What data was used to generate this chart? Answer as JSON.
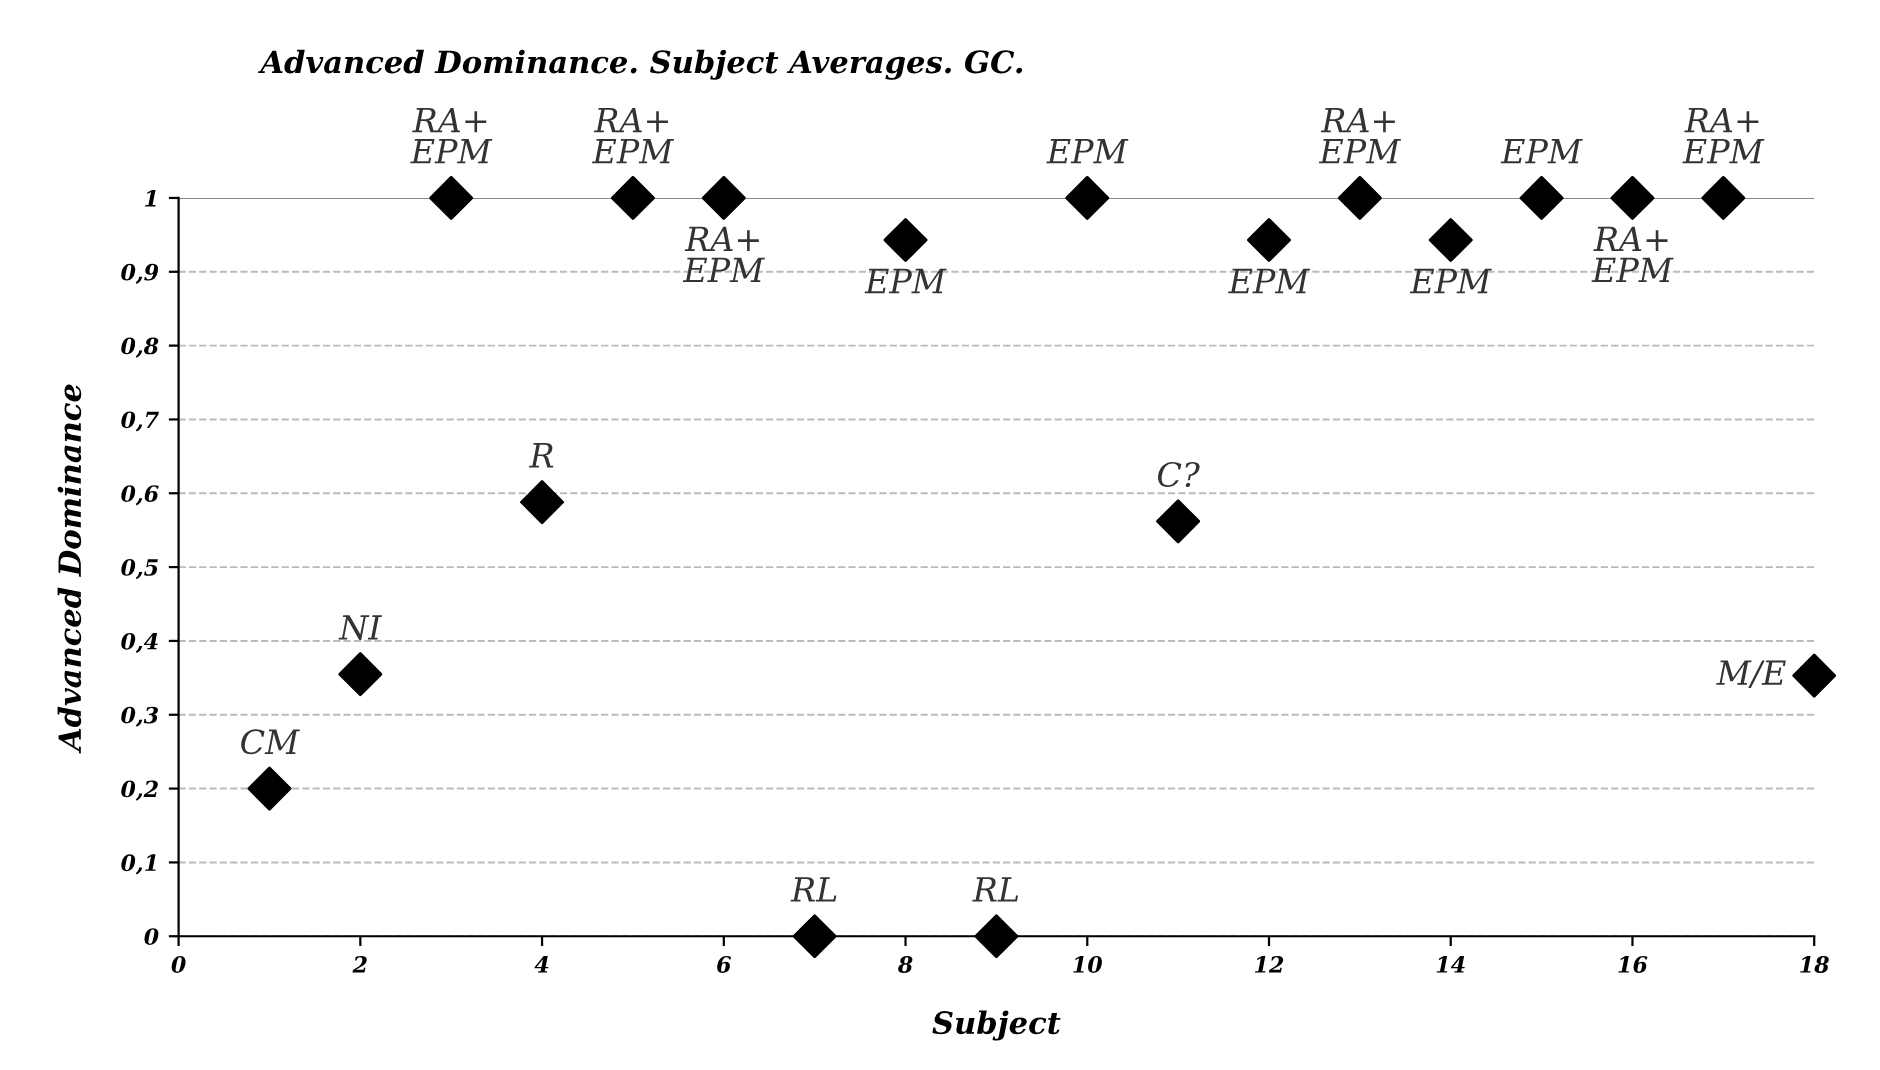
{
  "chart_data": {
    "type": "scatter",
    "title": "Advanced Dominance. Subject Averages. GC.",
    "xlabel": "Subject",
    "ylabel": "Advanced Dominance",
    "x": [
      1,
      2,
      3,
      4,
      5,
      6,
      7,
      8,
      9,
      10,
      11,
      12,
      13,
      14,
      15,
      16,
      17,
      18
    ],
    "series": [
      {
        "color": "#000000",
        "values": [
          0.2,
          0.355,
          1,
          0.588,
          1,
          1,
          0,
          0.943,
          0,
          1,
          0.562,
          0.943,
          1,
          0.943,
          1,
          1,
          1,
          0.353
        ]
      }
    ],
    "marker": "diamond",
    "grid": "y",
    "legend": false,
    "xlim": [
      0,
      18
    ],
    "xticks": [
      0,
      2,
      4,
      6,
      8,
      10,
      12,
      14,
      16,
      18
    ],
    "ylim": [
      0,
      1
    ],
    "yticks": [
      0,
      {
        "value": 0.1,
        "label": "0,1"
      },
      {
        "value": 0.2,
        "label": "0,2"
      },
      {
        "value": 0.3,
        "label": "0,3"
      },
      {
        "value": 0.4,
        "label": "0,4"
      },
      {
        "value": 0.5,
        "label": "0,5"
      },
      {
        "value": 0.6,
        "label": "0,6"
      },
      {
        "value": 0.7,
        "label": "0,7"
      },
      {
        "value": 0.8,
        "label": "0,8"
      },
      {
        "value": 0.9,
        "label": "0,9"
      },
      1
    ],
    "annotations": [
      {
        "text": "CM",
        "x": 1,
        "y": 0.2
      },
      {
        "text": "NI",
        "x": 2,
        "y": 0.355
      },
      {
        "text": "RA+\nEPM",
        "x": 3,
        "y": 1
      },
      {
        "text": "R",
        "x": 4,
        "y": 0.588
      },
      {
        "text": "RA+\nEPM",
        "x": 5,
        "y": 1
      },
      {
        "text": "RA+\nEPM",
        "x": 6,
        "y": 1
      },
      {
        "text": "RL",
        "x": 7,
        "y": 0
      },
      {
        "text": "EPM",
        "x": 8,
        "y": 0.943
      },
      {
        "text": "RL",
        "x": 9,
        "y": 0
      },
      {
        "text": "EPM",
        "x": 10,
        "y": 1
      },
      {
        "text": "C?",
        "x": 11,
        "y": 0.562
      },
      {
        "text": "EPM",
        "x": 12,
        "y": 0.943
      },
      {
        "text": "RA+\nEPM",
        "x": 13,
        "y": 1
      },
      {
        "text": "EPM",
        "x": 14,
        "y": 0.943
      },
      {
        "text": "EPM",
        "x": 15,
        "y": 1
      },
      {
        "text": "RA+\nEPM",
        "x": 16,
        "y": 1
      },
      {
        "text": "RA+\nEPM",
        "x": 17,
        "y": 1
      },
      {
        "text": "M/E",
        "x": 18,
        "y": 0.353
      }
    ]
  }
}
